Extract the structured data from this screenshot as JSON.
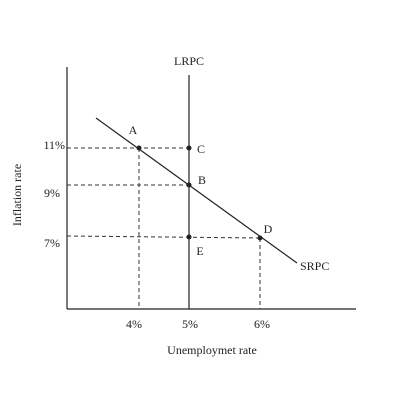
{
  "axes": {
    "y_label": "Inflation rate",
    "x_label": "Unemploymet rate",
    "y_ticks": [
      "11%",
      "9%",
      "7%"
    ],
    "x_ticks": [
      "4%",
      "5%",
      "6%"
    ]
  },
  "curves": {
    "lrpc": "LRPC",
    "srpc": "SRPC"
  },
  "points": [
    "A",
    "B",
    "C",
    "D",
    "E"
  ]
}
